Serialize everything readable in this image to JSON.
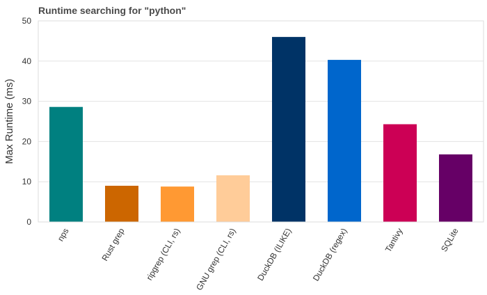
{
  "chart_data": {
    "type": "bar",
    "title": "Runtime searching for \"python\"",
    "xlabel": "",
    "ylabel": "Max Runtime (ms)",
    "ylim": [
      0,
      50
    ],
    "yticks": [
      "0",
      "10",
      "20",
      "30",
      "40",
      "50"
    ],
    "grid": true,
    "categories": [
      "nps",
      "Rust grep",
      "ripgrep (CLI, rs)",
      "GNU grep (CLI, rs)",
      "DuckDB (ILIKE)",
      "DuckDB (regex)",
      "Tantivy",
      "SQLite"
    ],
    "values": [
      28.6,
      9.0,
      8.8,
      11.6,
      46.0,
      40.3,
      24.3,
      16.8
    ],
    "colors": [
      "#008080",
      "#cc6600",
      "#ff9933",
      "#ffcc99",
      "#003366",
      "#0066cc",
      "#cc0055",
      "#660066"
    ]
  }
}
